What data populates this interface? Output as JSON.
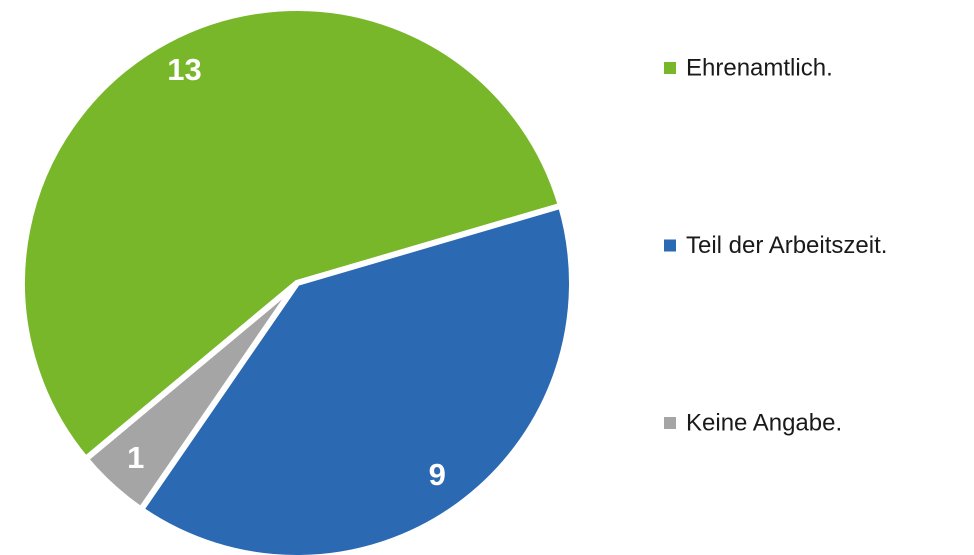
{
  "chart_data": {
    "type": "pie",
    "categories": [
      "Ehrenamtlich.",
      "Teil der Arbeitszeit.",
      "Keine Angabe."
    ],
    "values": [
      13,
      9,
      1
    ],
    "colors": [
      "#78b72a",
      "#2b6ab3",
      "#a5a5a5"
    ],
    "legend": "right"
  }
}
